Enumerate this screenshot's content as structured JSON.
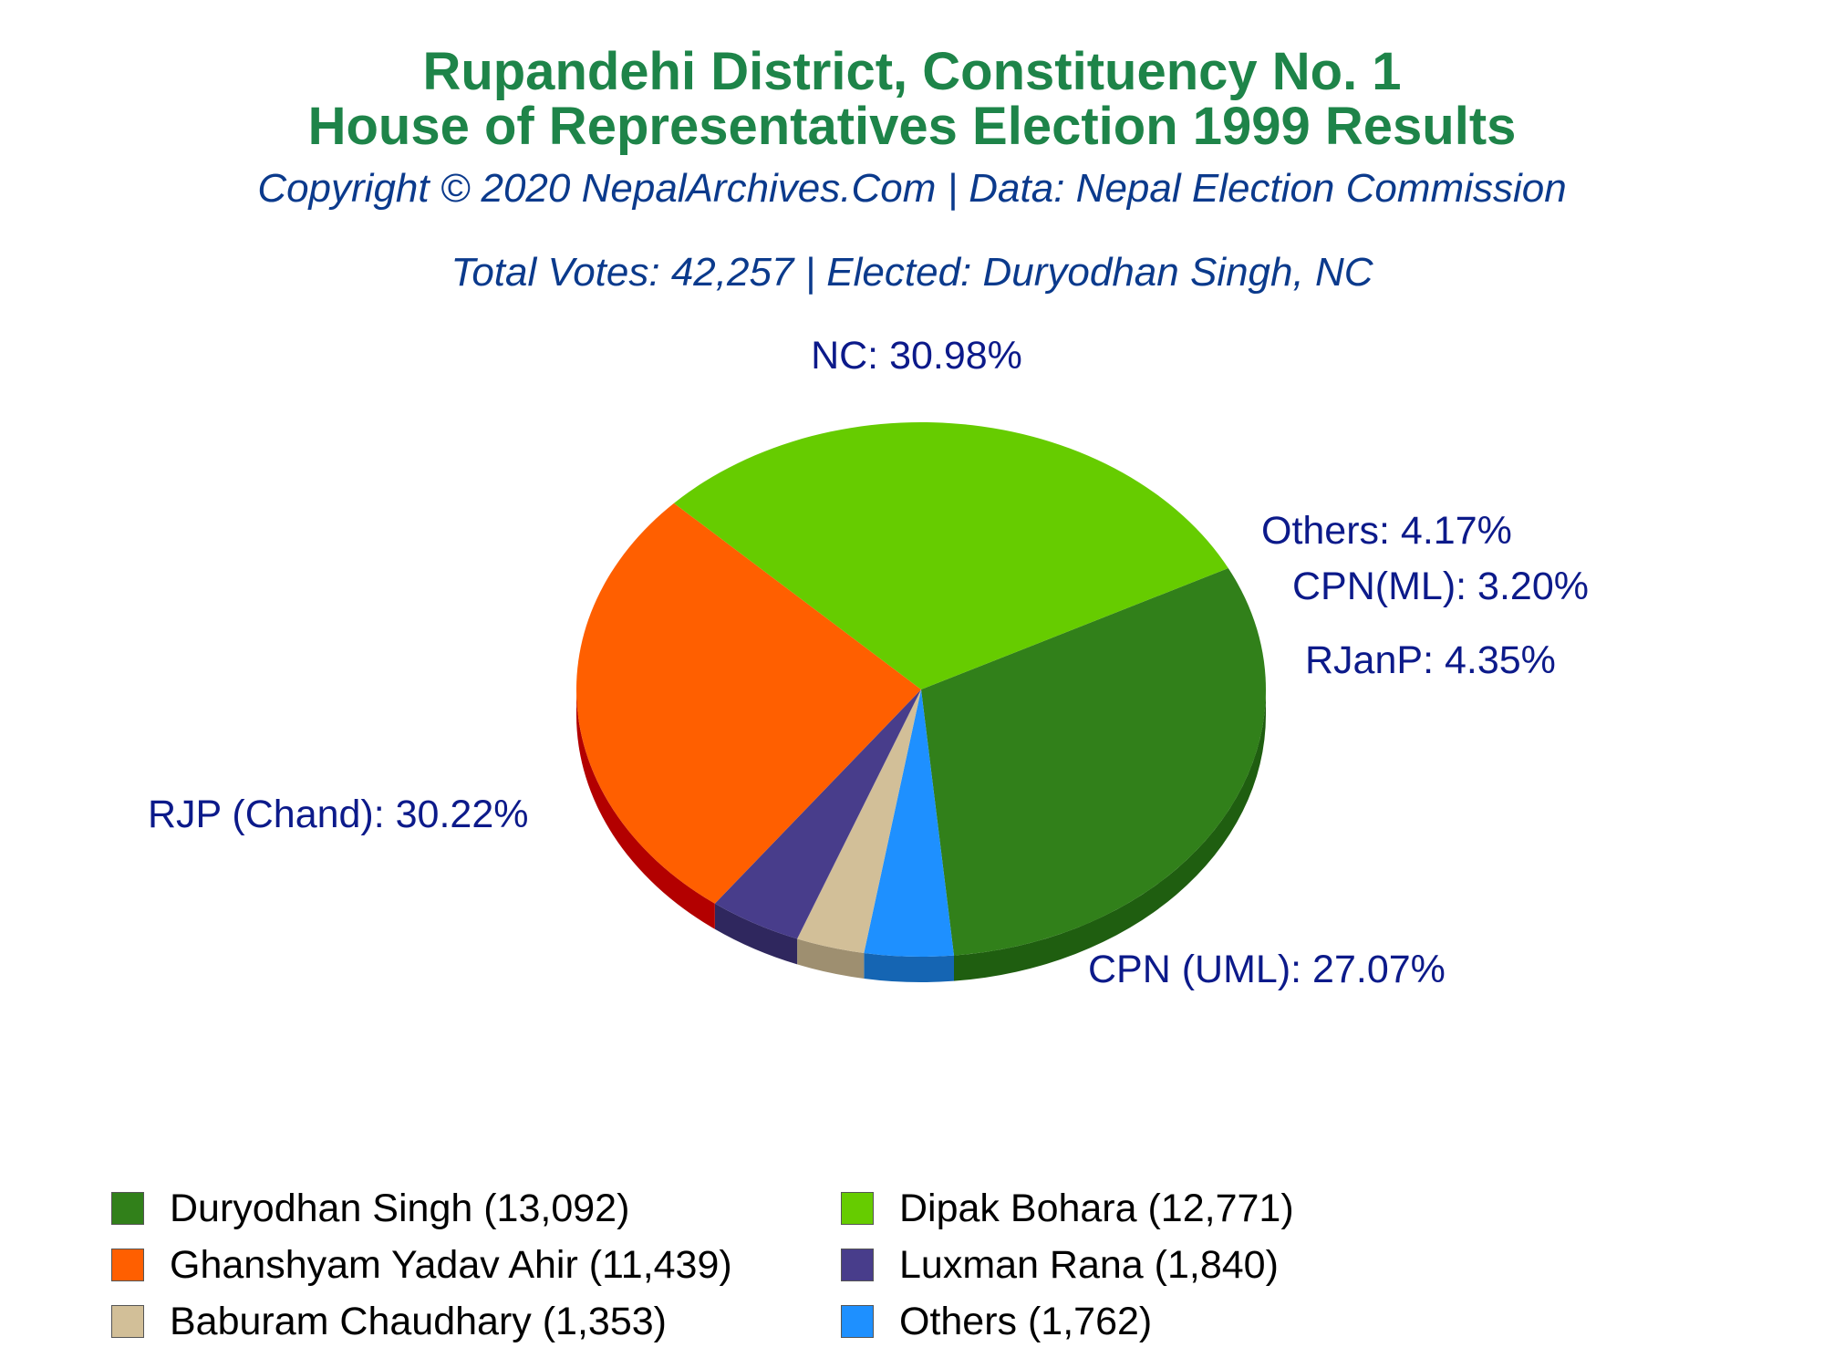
{
  "header": {
    "title_line1": "Rupandehi District, Constituency No. 1",
    "title_line2": "House of Representatives Election 1999 Results",
    "subtitle": "Copyright © 2020 NepalArchives.Com | Data: Nepal Election Commission",
    "summary": "Total Votes: 42,257 | Elected: Duryodhan Singh, NC"
  },
  "chart_data": {
    "type": "pie",
    "title": "Rupandehi District, Constituency No. 1 — House of Representatives Election 1999 Results",
    "total_votes": 42257,
    "elected": "Duryodhan Singh, NC",
    "slices": [
      {
        "candidate": "Duryodhan Singh",
        "party_label": "NC",
        "votes": 13092,
        "percent": 30.98,
        "label": "NC: 30.98%",
        "color": "#31801a",
        "side_color": "#1f5e10"
      },
      {
        "candidate": "Others",
        "party_label": "Others",
        "votes": 1762,
        "percent": 4.17,
        "label": "Others: 4.17%",
        "color": "#1e90ff",
        "side_color": "#1565b3"
      },
      {
        "candidate": "Baburam Chaudhary",
        "party_label": "CPN(ML)",
        "votes": 1353,
        "percent": 3.2,
        "label": "CPN(ML): 3.20%",
        "color": "#d2bf98",
        "side_color": "#9e8f70"
      },
      {
        "candidate": "Luxman Rana",
        "party_label": "RJanP",
        "votes": 1840,
        "percent": 4.35,
        "label": "RJanP: 4.35%",
        "color": "#483d8b",
        "side_color": "#2f275e"
      },
      {
        "candidate": "Ghanshyam Yadav Ahir",
        "party_label": "CPN (UML)",
        "votes": 11439,
        "percent": 27.07,
        "label": "CPN (UML): 27.07%",
        "color": "#ff5f00",
        "side_color": "#b30000"
      },
      {
        "candidate": "Dipak Bohara",
        "party_label": "RJP (Chand)",
        "votes": 12771,
        "percent": 30.22,
        "label": "RJP (Chand): 30.22%",
        "color": "#66cc00",
        "side_color": "#0f7a00"
      }
    ],
    "legend": [
      {
        "text": "Duryodhan Singh (13,092)",
        "color": "#31801a"
      },
      {
        "text": "Dipak Bohara (12,771)",
        "color": "#66cc00"
      },
      {
        "text": "Ghanshyam Yadav Ahir (11,439)",
        "color": "#ff5f00"
      },
      {
        "text": "Luxman Rana (1,840)",
        "color": "#483d8b"
      },
      {
        "text": "Baburam Chaudhary (1,353)",
        "color": "#d2bf98"
      },
      {
        "text": "Others (1,762)",
        "color": "#1e90ff"
      }
    ]
  }
}
